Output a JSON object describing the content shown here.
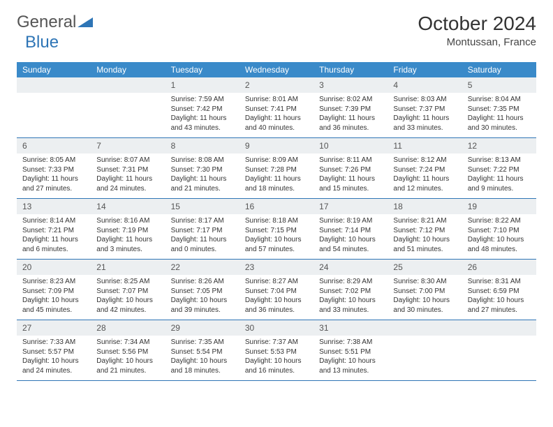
{
  "brand": {
    "part1": "General",
    "part2": "Blue"
  },
  "title": "October 2024",
  "location": "Montussan, France",
  "weekdays": [
    "Sunday",
    "Monday",
    "Tuesday",
    "Wednesday",
    "Thursday",
    "Friday",
    "Saturday"
  ],
  "colors": {
    "header_bg": "#3a8ac9",
    "header_text": "#ffffff",
    "daynum_bg": "#eceff1",
    "row_divider": "#2e75b6",
    "brand_blue": "#2e75b6",
    "text": "#333333"
  },
  "labels": {
    "sunrise": "Sunrise:",
    "sunset": "Sunset:",
    "daylight": "Daylight:"
  },
  "weeks": [
    [
      {
        "day": "",
        "sunrise": "",
        "sunset": "",
        "daylight": ""
      },
      {
        "day": "",
        "sunrise": "",
        "sunset": "",
        "daylight": ""
      },
      {
        "day": "1",
        "sunrise": "7:59 AM",
        "sunset": "7:42 PM",
        "daylight": "11 hours and 43 minutes."
      },
      {
        "day": "2",
        "sunrise": "8:01 AM",
        "sunset": "7:41 PM",
        "daylight": "11 hours and 40 minutes."
      },
      {
        "day": "3",
        "sunrise": "8:02 AM",
        "sunset": "7:39 PM",
        "daylight": "11 hours and 36 minutes."
      },
      {
        "day": "4",
        "sunrise": "8:03 AM",
        "sunset": "7:37 PM",
        "daylight": "11 hours and 33 minutes."
      },
      {
        "day": "5",
        "sunrise": "8:04 AM",
        "sunset": "7:35 PM",
        "daylight": "11 hours and 30 minutes."
      }
    ],
    [
      {
        "day": "6",
        "sunrise": "8:05 AM",
        "sunset": "7:33 PM",
        "daylight": "11 hours and 27 minutes."
      },
      {
        "day": "7",
        "sunrise": "8:07 AM",
        "sunset": "7:31 PM",
        "daylight": "11 hours and 24 minutes."
      },
      {
        "day": "8",
        "sunrise": "8:08 AM",
        "sunset": "7:30 PM",
        "daylight": "11 hours and 21 minutes."
      },
      {
        "day": "9",
        "sunrise": "8:09 AM",
        "sunset": "7:28 PM",
        "daylight": "11 hours and 18 minutes."
      },
      {
        "day": "10",
        "sunrise": "8:11 AM",
        "sunset": "7:26 PM",
        "daylight": "11 hours and 15 minutes."
      },
      {
        "day": "11",
        "sunrise": "8:12 AM",
        "sunset": "7:24 PM",
        "daylight": "11 hours and 12 minutes."
      },
      {
        "day": "12",
        "sunrise": "8:13 AM",
        "sunset": "7:22 PM",
        "daylight": "11 hours and 9 minutes."
      }
    ],
    [
      {
        "day": "13",
        "sunrise": "8:14 AM",
        "sunset": "7:21 PM",
        "daylight": "11 hours and 6 minutes."
      },
      {
        "day": "14",
        "sunrise": "8:16 AM",
        "sunset": "7:19 PM",
        "daylight": "11 hours and 3 minutes."
      },
      {
        "day": "15",
        "sunrise": "8:17 AM",
        "sunset": "7:17 PM",
        "daylight": "11 hours and 0 minutes."
      },
      {
        "day": "16",
        "sunrise": "8:18 AM",
        "sunset": "7:15 PM",
        "daylight": "10 hours and 57 minutes."
      },
      {
        "day": "17",
        "sunrise": "8:19 AM",
        "sunset": "7:14 PM",
        "daylight": "10 hours and 54 minutes."
      },
      {
        "day": "18",
        "sunrise": "8:21 AM",
        "sunset": "7:12 PM",
        "daylight": "10 hours and 51 minutes."
      },
      {
        "day": "19",
        "sunrise": "8:22 AM",
        "sunset": "7:10 PM",
        "daylight": "10 hours and 48 minutes."
      }
    ],
    [
      {
        "day": "20",
        "sunrise": "8:23 AM",
        "sunset": "7:09 PM",
        "daylight": "10 hours and 45 minutes."
      },
      {
        "day": "21",
        "sunrise": "8:25 AM",
        "sunset": "7:07 PM",
        "daylight": "10 hours and 42 minutes."
      },
      {
        "day": "22",
        "sunrise": "8:26 AM",
        "sunset": "7:05 PM",
        "daylight": "10 hours and 39 minutes."
      },
      {
        "day": "23",
        "sunrise": "8:27 AM",
        "sunset": "7:04 PM",
        "daylight": "10 hours and 36 minutes."
      },
      {
        "day": "24",
        "sunrise": "8:29 AM",
        "sunset": "7:02 PM",
        "daylight": "10 hours and 33 minutes."
      },
      {
        "day": "25",
        "sunrise": "8:30 AM",
        "sunset": "7:00 PM",
        "daylight": "10 hours and 30 minutes."
      },
      {
        "day": "26",
        "sunrise": "8:31 AM",
        "sunset": "6:59 PM",
        "daylight": "10 hours and 27 minutes."
      }
    ],
    [
      {
        "day": "27",
        "sunrise": "7:33 AM",
        "sunset": "5:57 PM",
        "daylight": "10 hours and 24 minutes."
      },
      {
        "day": "28",
        "sunrise": "7:34 AM",
        "sunset": "5:56 PM",
        "daylight": "10 hours and 21 minutes."
      },
      {
        "day": "29",
        "sunrise": "7:35 AM",
        "sunset": "5:54 PM",
        "daylight": "10 hours and 18 minutes."
      },
      {
        "day": "30",
        "sunrise": "7:37 AM",
        "sunset": "5:53 PM",
        "daylight": "10 hours and 16 minutes."
      },
      {
        "day": "31",
        "sunrise": "7:38 AM",
        "sunset": "5:51 PM",
        "daylight": "10 hours and 13 minutes."
      },
      {
        "day": "",
        "sunrise": "",
        "sunset": "",
        "daylight": ""
      },
      {
        "day": "",
        "sunrise": "",
        "sunset": "",
        "daylight": ""
      }
    ]
  ]
}
